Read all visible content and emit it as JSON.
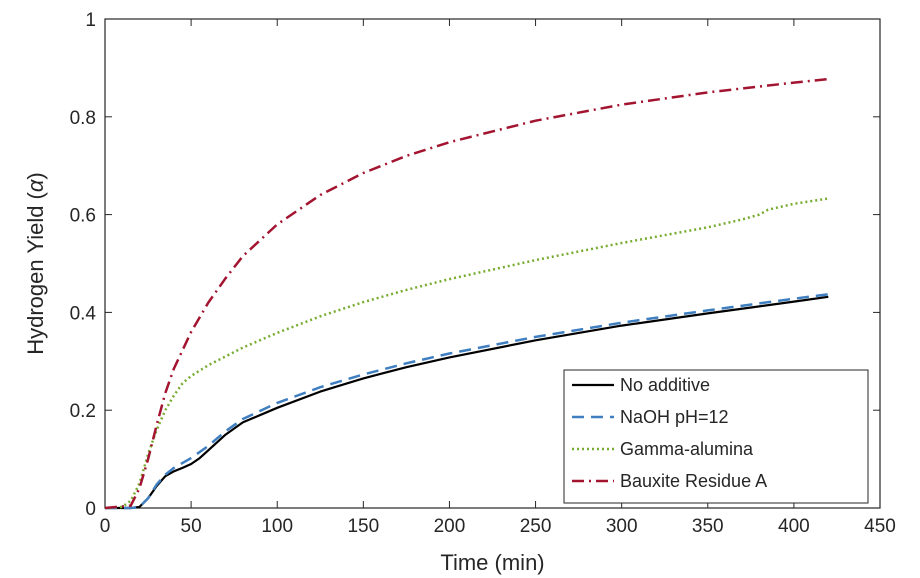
{
  "chart_data": {
    "type": "line",
    "title": "",
    "xlabel": "Time (min)",
    "ylabel_main": "Hydrogen Yield (",
    "ylabel_symbol": "α",
    "ylabel_end": ")",
    "xlim": [
      0,
      450
    ],
    "ylim": [
      0,
      1
    ],
    "xticks": [
      "0",
      "50",
      "100",
      "150",
      "200",
      "250",
      "300",
      "350",
      "400",
      "450"
    ],
    "yticks": [
      "0",
      "0.2",
      "0.4",
      "0.6",
      "0.8",
      "1"
    ],
    "grid": false,
    "legend_position": "bottom-right",
    "series": [
      {
        "name": "No additive",
        "color": "#000000",
        "dash": "solid",
        "points": [
          [
            0,
            0
          ],
          [
            15,
            0
          ],
          [
            20,
            0.002
          ],
          [
            25,
            0.02
          ],
          [
            30,
            0.045
          ],
          [
            35,
            0.065
          ],
          [
            40,
            0.075
          ],
          [
            45,
            0.082
          ],
          [
            50,
            0.09
          ],
          [
            55,
            0.102
          ],
          [
            60,
            0.118
          ],
          [
            70,
            0.15
          ],
          [
            80,
            0.175
          ],
          [
            100,
            0.205
          ],
          [
            125,
            0.238
          ],
          [
            150,
            0.265
          ],
          [
            175,
            0.288
          ],
          [
            200,
            0.308
          ],
          [
            250,
            0.343
          ],
          [
            300,
            0.373
          ],
          [
            350,
            0.398
          ],
          [
            400,
            0.422
          ],
          [
            420,
            0.432
          ]
        ]
      },
      {
        "name": "NaOH pH=12",
        "color": "#3f7fc0",
        "dash": "dashed",
        "points": [
          [
            0,
            0
          ],
          [
            15,
            0
          ],
          [
            20,
            0.002
          ],
          [
            25,
            0.02
          ],
          [
            30,
            0.048
          ],
          [
            35,
            0.068
          ],
          [
            40,
            0.082
          ],
          [
            50,
            0.102
          ],
          [
            60,
            0.127
          ],
          [
            70,
            0.157
          ],
          [
            80,
            0.182
          ],
          [
            100,
            0.215
          ],
          [
            125,
            0.247
          ],
          [
            150,
            0.273
          ],
          [
            175,
            0.296
          ],
          [
            200,
            0.316
          ],
          [
            250,
            0.35
          ],
          [
            300,
            0.379
          ],
          [
            350,
            0.404
          ],
          [
            400,
            0.428
          ],
          [
            420,
            0.437
          ]
        ]
      },
      {
        "name": "Gamma-alumina",
        "color": "#77ac30",
        "dash": "dotted",
        "points": [
          [
            0,
            0
          ],
          [
            10,
            0.002
          ],
          [
            15,
            0.015
          ],
          [
            20,
            0.05
          ],
          [
            25,
            0.11
          ],
          [
            30,
            0.16
          ],
          [
            35,
            0.2
          ],
          [
            40,
            0.23
          ],
          [
            45,
            0.255
          ],
          [
            50,
            0.27
          ],
          [
            60,
            0.292
          ],
          [
            70,
            0.31
          ],
          [
            80,
            0.328
          ],
          [
            100,
            0.358
          ],
          [
            125,
            0.392
          ],
          [
            150,
            0.421
          ],
          [
            175,
            0.446
          ],
          [
            200,
            0.468
          ],
          [
            250,
            0.507
          ],
          [
            300,
            0.542
          ],
          [
            350,
            0.574
          ],
          [
            370,
            0.59
          ],
          [
            380,
            0.6
          ],
          [
            385,
            0.61
          ],
          [
            400,
            0.622
          ],
          [
            420,
            0.633
          ]
        ]
      },
      {
        "name": "Bauxite Residue A",
        "color": "#a2142f",
        "dash": "dashdot",
        "points": [
          [
            0,
            0
          ],
          [
            15,
            0.005
          ],
          [
            20,
            0.04
          ],
          [
            25,
            0.1
          ],
          [
            30,
            0.17
          ],
          [
            35,
            0.235
          ],
          [
            40,
            0.285
          ],
          [
            50,
            0.36
          ],
          [
            60,
            0.42
          ],
          [
            70,
            0.47
          ],
          [
            80,
            0.515
          ],
          [
            100,
            0.58
          ],
          [
            125,
            0.64
          ],
          [
            150,
            0.685
          ],
          [
            175,
            0.72
          ],
          [
            200,
            0.748
          ],
          [
            250,
            0.792
          ],
          [
            300,
            0.825
          ],
          [
            350,
            0.85
          ],
          [
            400,
            0.87
          ],
          [
            420,
            0.877
          ]
        ]
      }
    ]
  }
}
